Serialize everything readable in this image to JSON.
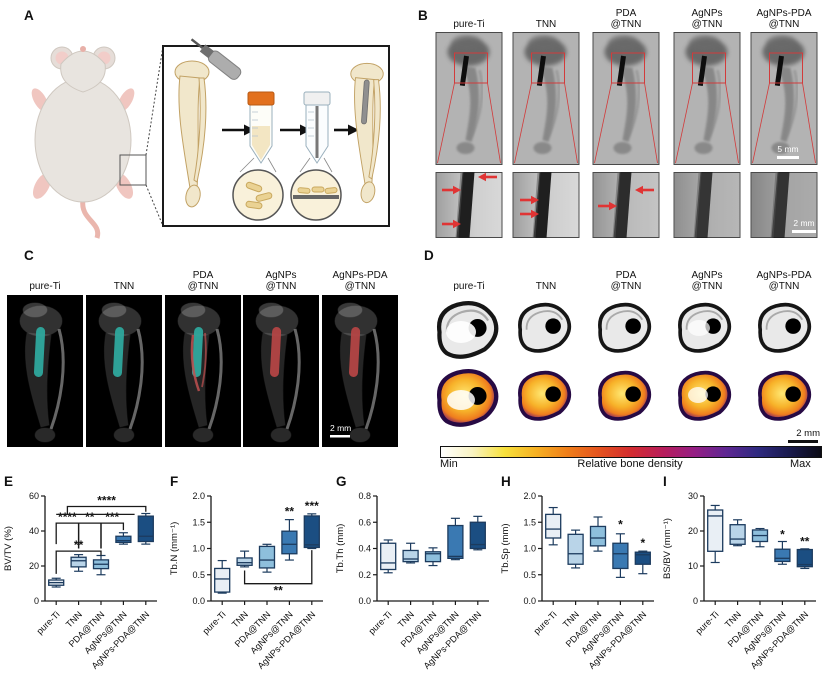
{
  "panel_letters": {
    "a": "A",
    "b": "B",
    "c": "C",
    "d": "D",
    "e": "E",
    "f": "F",
    "g": "G",
    "h": "H",
    "i": "I"
  },
  "group_labels": [
    "pure-Ti",
    "TNN",
    "PDA\n@TNN",
    "AgNPs\n@TNN",
    "AgNPs-PDA\n@TNN"
  ],
  "scale_bars": {
    "b_top": "5 mm",
    "b_bottom": "2 mm",
    "c": "2 mm",
    "d": "2 mm"
  },
  "colorbar": {
    "min_label": "Min",
    "title": "Relative bone density",
    "max_label": "Max"
  },
  "colors": {
    "axis": "#1a1a1a",
    "box_stroke": "#1c3b5e",
    "box_fills": [
      "#e9eff5",
      "#b9d4e8",
      "#8ebfdc",
      "#3a79b2",
      "#1b4e82"
    ],
    "significance": "#111111",
    "red_marker": "#e03434",
    "teal_implant": "#2ea89d",
    "red_implant": "#b34444",
    "colorbar_stops": [
      "#ffffff",
      "#f9f3c2",
      "#f7e13c",
      "#f6b123",
      "#ef7e1a",
      "#e4531f",
      "#d32c30",
      "#b81d5b",
      "#951e84",
      "#5f2793",
      "#2f2a80",
      "#191a4d",
      "#0a0a14"
    ]
  },
  "chart_data": [
    {
      "type": "box",
      "panel": "E",
      "ylabel": "BV/TV (%)",
      "ylim": [
        0,
        60
      ],
      "yticks": [
        0,
        20,
        40,
        60
      ],
      "ytick_labels": [
        "0",
        "20",
        "40",
        "60"
      ],
      "categories": [
        "pure-Ti",
        "TNN",
        "PDA@TNN",
        "AgNPs@TNN",
        "AgNPs-PDA@TNN"
      ],
      "boxes": [
        {
          "lo": 8,
          "q1": 9,
          "med": 10.5,
          "q3": 12,
          "hi": 13
        },
        {
          "lo": 17,
          "q1": 19.5,
          "med": 23,
          "q3": 25,
          "hi": 26.5
        },
        {
          "lo": 15,
          "q1": 18.5,
          "med": 21,
          "q3": 23.5,
          "hi": 26
        },
        {
          "lo": 32.5,
          "q1": 33.5,
          "med": 34.5,
          "q3": 37,
          "hi": 39
        },
        {
          "lo": 32.5,
          "q1": 34,
          "med": 37,
          "q3": 48.5,
          "hi": 50
        }
      ],
      "brackets": [
        {
          "x1": 0,
          "x2": 2,
          "y": 28.5,
          "d1": 13,
          "d2": 2.5,
          "label": "**"
        },
        {
          "x1": 0,
          "x2": 1,
          "y": 44.5,
          "d1": 12,
          "d2": 14.5,
          "label": "****"
        },
        {
          "x1": 1,
          "x2": 2,
          "y": 44.5,
          "d1": 14.5,
          "d2": 14.5,
          "label": "**"
        },
        {
          "x1": 2,
          "x2": 3,
          "y": 44.5,
          "d1": 14.5,
          "d2": 4,
          "label": "***"
        },
        {
          "x1": 0,
          "x2": 3.5,
          "y": 49.5,
          "d1": 0,
          "d2": 0,
          "label": ""
        },
        {
          "x1": 0.5,
          "x2": 4,
          "y": 54,
          "d1": 4.5,
          "d2": 3,
          "label": "****"
        }
      ],
      "stars": []
    },
    {
      "type": "box",
      "panel": "F",
      "ylabel": "Tb.N (mm⁻¹)",
      "ylim": [
        0,
        2
      ],
      "yticks": [
        0,
        0.5,
        1,
        1.5,
        2
      ],
      "ytick_labels": [
        "0.0",
        "0.5",
        "1.0",
        "1.5",
        "2.0"
      ],
      "categories": [
        "pure-Ti",
        "TNN",
        "PDA@TNN",
        "AgNPs@TNN",
        "AgNPs-PDA@TNN"
      ],
      "boxes": [
        {
          "lo": 0.15,
          "q1": 0.17,
          "med": 0.42,
          "q3": 0.62,
          "hi": 0.77
        },
        {
          "lo": 0.65,
          "q1": 0.68,
          "med": 0.73,
          "q3": 0.82,
          "hi": 0.95
        },
        {
          "lo": 0.55,
          "q1": 0.63,
          "med": 0.78,
          "q3": 1.04,
          "hi": 1.08
        },
        {
          "lo": 0.78,
          "q1": 0.9,
          "med": 1.08,
          "q3": 1.33,
          "hi": 1.55
        },
        {
          "lo": 1.0,
          "q1": 1.02,
          "med": 1.07,
          "q3": 1.62,
          "hi": 1.66
        }
      ],
      "brackets": [
        {
          "x1": 1,
          "x2": 4,
          "y": 0.33,
          "d1": 0.25,
          "d2": 0.64,
          "label": "**",
          "side": "below"
        }
      ],
      "stars": [
        {
          "x": 3,
          "y": 1.63,
          "label": "**"
        },
        {
          "x": 4,
          "y": 1.73,
          "label": "***"
        }
      ]
    },
    {
      "type": "box",
      "panel": "G",
      "ylabel": "Tb.Th (mm)",
      "ylim": [
        0,
        0.8
      ],
      "yticks": [
        0,
        0.2,
        0.4,
        0.6,
        0.8
      ],
      "ytick_labels": [
        "0.0",
        "0.2",
        "0.4",
        "0.6",
        "0.8"
      ],
      "categories": [
        "pure-Ti",
        "TNN",
        "PDA@TNN",
        "AgNPs@TNN",
        "AgNPs-PDA@TNN"
      ],
      "boxes": [
        {
          "lo": 0.215,
          "q1": 0.24,
          "med": 0.29,
          "q3": 0.44,
          "hi": 0.465
        },
        {
          "lo": 0.29,
          "q1": 0.3,
          "med": 0.32,
          "q3": 0.385,
          "hi": 0.44
        },
        {
          "lo": 0.27,
          "q1": 0.3,
          "med": 0.36,
          "q3": 0.375,
          "hi": 0.405
        },
        {
          "lo": 0.315,
          "q1": 0.325,
          "med": 0.34,
          "q3": 0.575,
          "hi": 0.63
        },
        {
          "lo": 0.39,
          "q1": 0.4,
          "med": 0.43,
          "q3": 0.6,
          "hi": 0.645
        }
      ],
      "brackets": [],
      "stars": []
    },
    {
      "type": "box",
      "panel": "H",
      "ylabel": "Tb.Sp (mm)",
      "ylim": [
        0,
        2
      ],
      "yticks": [
        0,
        0.5,
        1,
        1.5,
        2
      ],
      "ytick_labels": [
        "0.0",
        "0.5",
        "1.0",
        "1.5",
        "2.0"
      ],
      "categories": [
        "pure-Ti",
        "TNN",
        "PDA@TNN",
        "AgNPs@TNN",
        "AgNPs-PDA@TNN"
      ],
      "boxes": [
        {
          "lo": 1.07,
          "q1": 1.2,
          "med": 1.37,
          "q3": 1.65,
          "hi": 1.78
        },
        {
          "lo": 0.63,
          "q1": 0.7,
          "med": 0.9,
          "q3": 1.27,
          "hi": 1.35
        },
        {
          "lo": 0.95,
          "q1": 1.05,
          "med": 1.2,
          "q3": 1.42,
          "hi": 1.6
        },
        {
          "lo": 0.45,
          "q1": 0.62,
          "med": 0.9,
          "q3": 1.1,
          "hi": 1.28
        },
        {
          "lo": 0.52,
          "q1": 0.7,
          "med": 0.88,
          "q3": 0.93,
          "hi": 0.95
        }
      ],
      "brackets": [],
      "stars": [
        {
          "x": 3,
          "y": 1.38,
          "label": "*"
        },
        {
          "x": 4,
          "y": 1.03,
          "label": "*"
        }
      ]
    },
    {
      "type": "box",
      "panel": "I",
      "ylabel": "BS/BV (mm⁻¹)",
      "ylim": [
        0,
        30
      ],
      "yticks": [
        0,
        10,
        20,
        30
      ],
      "ytick_labels": [
        "0",
        "10",
        "20",
        "30"
      ],
      "categories": [
        "pure-Ti",
        "TNN",
        "PDA@TNN",
        "AgNPs@TNN",
        "AgNPs-PDA@TNN"
      ],
      "boxes": [
        {
          "lo": 11,
          "q1": 14.2,
          "med": 24.3,
          "q3": 26,
          "hi": 27.3
        },
        {
          "lo": 15.8,
          "q1": 16.2,
          "med": 17.7,
          "q3": 21.8,
          "hi": 23.2
        },
        {
          "lo": 15.5,
          "q1": 17,
          "med": 18.7,
          "q3": 20.3,
          "hi": 20.7
        },
        {
          "lo": 10.5,
          "q1": 11.3,
          "med": 12.2,
          "q3": 14.8,
          "hi": 17
        },
        {
          "lo": 9.3,
          "q1": 9.8,
          "med": 10.4,
          "q3": 14.7,
          "hi": 14.9
        }
      ],
      "brackets": [],
      "stars": [
        {
          "x": 3,
          "y": 17.8,
          "label": "*"
        },
        {
          "x": 4,
          "y": 15.8,
          "label": "**"
        }
      ]
    }
  ]
}
